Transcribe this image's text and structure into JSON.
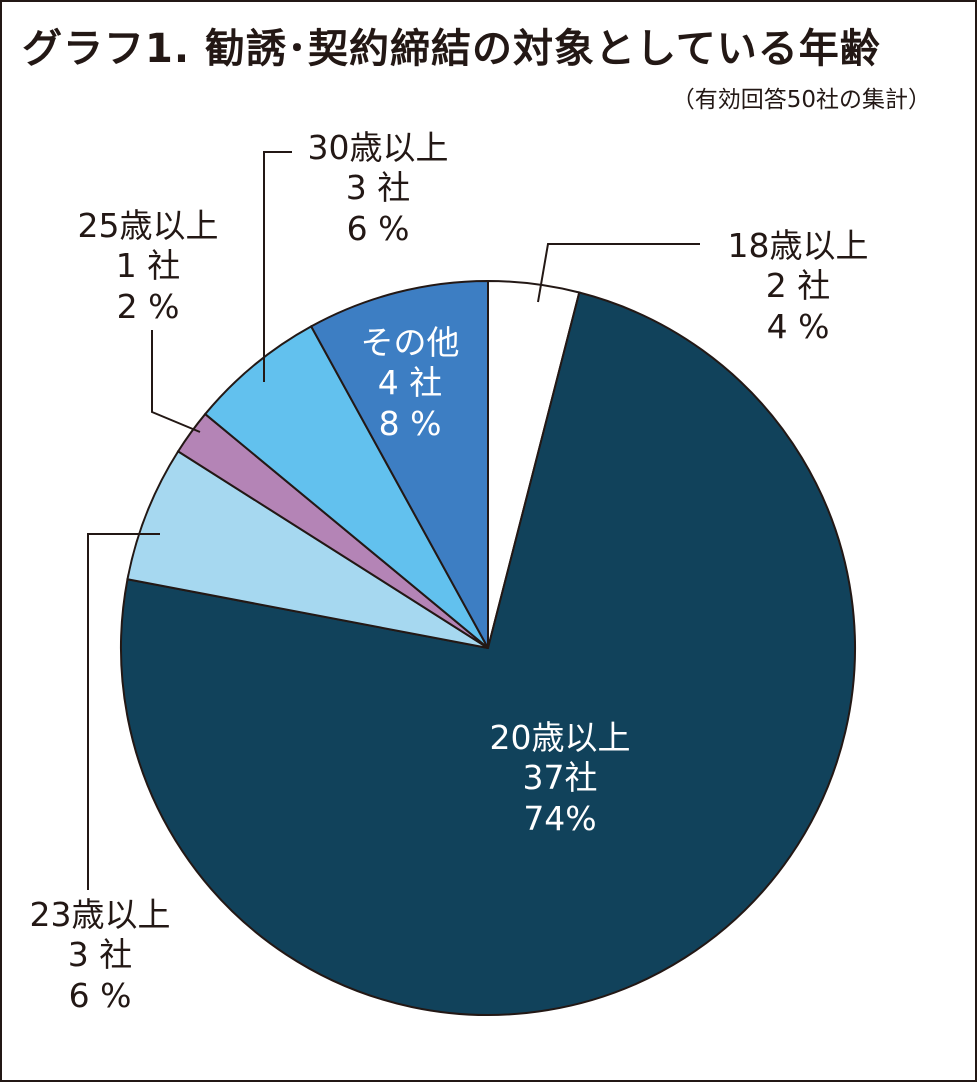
{
  "chart_data": {
    "type": "pie",
    "title": "グラフ1. 勧誘･契約締結の対象としている年齢",
    "subtitle": "（有効回答50社の集計）",
    "slices": [
      {
        "label": "18歳以上",
        "count_label": "2 社",
        "percent_label": "4 %",
        "value": 2,
        "color": "#ffffff"
      },
      {
        "label": "20歳以上",
        "count_label": "37社",
        "percent_label": "74%",
        "value": 37,
        "color": "#11425b"
      },
      {
        "label": "23歳以上",
        "count_label": "3 社",
        "percent_label": "6 %",
        "value": 3,
        "color": "#a6d8f0"
      },
      {
        "label": "25歳以上",
        "count_label": "1 社",
        "percent_label": "2 %",
        "value": 1,
        "color": "#b484b6"
      },
      {
        "label": "30歳以上",
        "count_label": "3 社",
        "percent_label": "6 %",
        "value": 3,
        "color": "#62c1ee"
      },
      {
        "label": "その他",
        "count_label": "4 社",
        "percent_label": "8 %",
        "value": 4,
        "color": "#3d7ec3"
      }
    ],
    "total": 50,
    "start": "12 o'clock",
    "direction": "clockwise"
  }
}
